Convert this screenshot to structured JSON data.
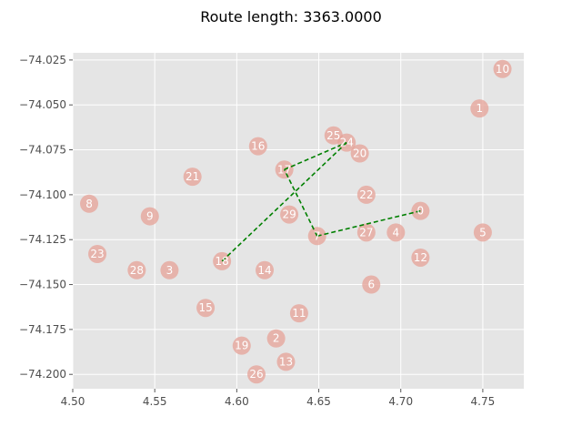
{
  "chart_data": {
    "type": "scatter",
    "title": "Route length: 3363.0000",
    "xlabel": "",
    "ylabel": "",
    "xlim": [
      4.5,
      4.775
    ],
    "ylim": [
      -74.208,
      -74.021
    ],
    "x_ticks": [
      4.5,
      4.55,
      4.6,
      4.65,
      4.7,
      4.75
    ],
    "x_tick_labels": [
      "4.50",
      "4.55",
      "4.60",
      "4.65",
      "4.70",
      "4.75"
    ],
    "y_ticks": [
      -74.025,
      -74.05,
      -74.075,
      -74.1,
      -74.125,
      -74.15,
      -74.175,
      -74.2
    ],
    "y_tick_labels": [
      "−74.025",
      "−74.050",
      "−74.075",
      "−74.100",
      "−74.125",
      "−74.150",
      "−74.175",
      "−74.200"
    ],
    "grid": true,
    "background": "#e5e5e5",
    "point_color": "#e6a197",
    "route_color": "#008000",
    "points": [
      {
        "id": "0",
        "x": 4.712,
        "y": -74.109
      },
      {
        "id": "1",
        "x": 4.748,
        "y": -74.052
      },
      {
        "id": "2",
        "x": 4.624,
        "y": -74.18
      },
      {
        "id": "3",
        "x": 4.559,
        "y": -74.142
      },
      {
        "id": "4",
        "x": 4.697,
        "y": -74.121
      },
      {
        "id": "5",
        "x": 4.75,
        "y": -74.121
      },
      {
        "id": "6",
        "x": 4.682,
        "y": -74.15
      },
      {
        "id": "7",
        "x": 4.649,
        "y": -74.123
      },
      {
        "id": "8",
        "x": 4.51,
        "y": -74.105
      },
      {
        "id": "9",
        "x": 4.547,
        "y": -74.112
      },
      {
        "id": "10",
        "x": 4.762,
        "y": -74.03
      },
      {
        "id": "11",
        "x": 4.638,
        "y": -74.166
      },
      {
        "id": "12",
        "x": 4.712,
        "y": -74.135
      },
      {
        "id": "13",
        "x": 4.63,
        "y": -74.193
      },
      {
        "id": "14",
        "x": 4.617,
        "y": -74.142
      },
      {
        "id": "15",
        "x": 4.581,
        "y": -74.163
      },
      {
        "id": "16",
        "x": 4.613,
        "y": -74.073
      },
      {
        "id": "17",
        "x": 4.629,
        "y": -74.086
      },
      {
        "id": "18",
        "x": 4.591,
        "y": -74.137
      },
      {
        "id": "19",
        "x": 4.603,
        "y": -74.184
      },
      {
        "id": "20",
        "x": 4.675,
        "y": -74.077
      },
      {
        "id": "21",
        "x": 4.573,
        "y": -74.09
      },
      {
        "id": "22",
        "x": 4.679,
        "y": -74.1
      },
      {
        "id": "23",
        "x": 4.515,
        "y": -74.133
      },
      {
        "id": "24",
        "x": 4.667,
        "y": -74.071
      },
      {
        "id": "25",
        "x": 4.659,
        "y": -74.067
      },
      {
        "id": "26",
        "x": 4.612,
        "y": -74.2
      },
      {
        "id": "27",
        "x": 4.679,
        "y": -74.121
      },
      {
        "id": "28",
        "x": 4.539,
        "y": -74.142
      },
      {
        "id": "29",
        "x": 4.632,
        "y": -74.111
      }
    ],
    "route": [
      "0",
      "7",
      "17",
      "24",
      "18"
    ]
  }
}
